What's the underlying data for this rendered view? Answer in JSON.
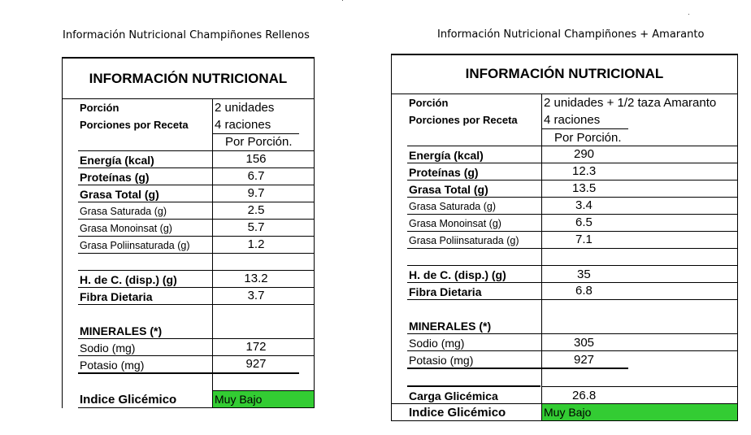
{
  "left": {
    "caption": "Información Nutricional Champiñones Rellenos",
    "title": "INFORMACIÓN NUTRICIONAL",
    "porcion_label": "Porción",
    "porcion_value": "2 unidades",
    "porciones_label": "Porciones por Receta",
    "porciones_value": "4 raciones",
    "por_porcion": "Por Porción.",
    "rows": [
      {
        "label": "Energía (kcal)",
        "value": "156"
      },
      {
        "label": "Proteínas (g)",
        "value": "6.7"
      },
      {
        "label": "Grasa Total (g)",
        "value": "9.7"
      },
      {
        "label": "Grasa Saturada (g)",
        "value": "2.5"
      },
      {
        "label": "Grasa Monoinsat (g)",
        "value": "5.7"
      },
      {
        "label": "Grasa Poliinsaturada (g)",
        "value": "1.2"
      },
      {
        "label": "H. de C. (disp.) (g)",
        "value": "13.2"
      },
      {
        "label": "Fibra Dietaria",
        "value": "3.7"
      }
    ],
    "minerales": "MINERALES (*)",
    "sodio_label": "Sodio (mg)",
    "sodio_value": "172",
    "potasio_label": "Potasio (mg)",
    "potasio_value": "927",
    "ig_label": "Indice Glicémico",
    "ig_value": "Muy Bajo"
  },
  "right": {
    "caption": "Información Nutricional Champiñones + Amaranto",
    "title": "INFORMACIÓN NUTRICIONAL",
    "porcion_label": "Porción",
    "porcion_value": "2 unidades + 1/2 taza Amaranto",
    "porciones_label": "Porciones por Receta",
    "porciones_value": "4 raciones",
    "por_porcion": "Por Porción.",
    "rows": [
      {
        "label": "Energía (kcal)",
        "value": "290"
      },
      {
        "label": "Proteínas (g)",
        "value": "12.3"
      },
      {
        "label": "Grasa Total (g)",
        "value": "13.5"
      },
      {
        "label": "Grasa Saturada (g)",
        "value": "3.4"
      },
      {
        "label": "Grasa Monoinsat (g)",
        "value": "6.5"
      },
      {
        "label": "Grasa Poliinsaturada (g)",
        "value": "7.1"
      },
      {
        "label": "H. de C. (disp.) (g)",
        "value": "35"
      },
      {
        "label": "Fibra Dietaria",
        "value": "6.8"
      }
    ],
    "minerales": "MINERALES (*)",
    "sodio_label": "Sodio (mg)",
    "sodio_value": "305",
    "potasio_label": "Potasio (mg)",
    "potasio_value": "927",
    "cg_label": "Carga Glicémica",
    "cg_value": "26.8",
    "ig_label": "Indice Glicémico",
    "ig_value": "Muy Bajo"
  },
  "colors": {
    "highlight": "#33cc33"
  }
}
